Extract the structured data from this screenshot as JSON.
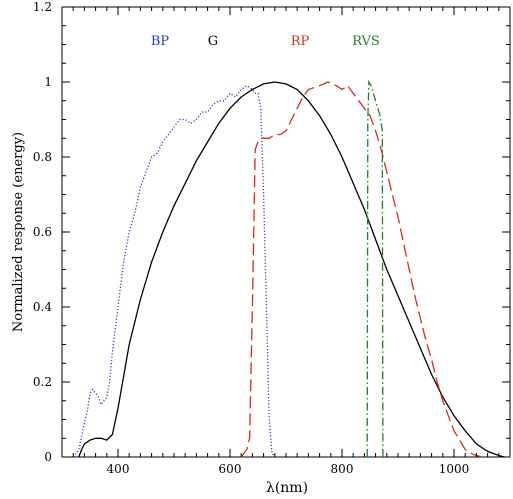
{
  "chart_data": {
    "type": "line",
    "title": "",
    "xlabel": "λ(nm)",
    "ylabel": "Normalized response (energy)",
    "xlim": [
      300,
      1100
    ],
    "ylim": [
      0,
      1.2
    ],
    "x_ticks": [
      400,
      600,
      800,
      1000
    ],
    "y_ticks": [
      0,
      0.2,
      0.4,
      0.6,
      0.8,
      1,
      1.2
    ],
    "grid": false,
    "legend": "in-plot labels along top",
    "series": [
      {
        "name": "BP",
        "color": "#1f3fbf",
        "dash": "dotted",
        "points": [
          [
            320,
            0
          ],
          [
            330,
            0.02
          ],
          [
            340,
            0.09
          ],
          [
            345,
            0.12
          ],
          [
            350,
            0.17
          ],
          [
            355,
            0.18
          ],
          [
            360,
            0.17
          ],
          [
            365,
            0.16
          ],
          [
            370,
            0.14
          ],
          [
            375,
            0.15
          ],
          [
            380,
            0.16
          ],
          [
            385,
            0.2
          ],
          [
            390,
            0.28
          ],
          [
            400,
            0.4
          ],
          [
            410,
            0.52
          ],
          [
            420,
            0.6
          ],
          [
            430,
            0.65
          ],
          [
            440,
            0.72
          ],
          [
            450,
            0.76
          ],
          [
            460,
            0.8
          ],
          [
            470,
            0.81
          ],
          [
            480,
            0.84
          ],
          [
            490,
            0.86
          ],
          [
            500,
            0.88
          ],
          [
            510,
            0.9
          ],
          [
            520,
            0.9
          ],
          [
            530,
            0.89
          ],
          [
            540,
            0.9
          ],
          [
            550,
            0.92
          ],
          [
            560,
            0.92
          ],
          [
            570,
            0.94
          ],
          [
            580,
            0.95
          ],
          [
            590,
            0.95
          ],
          [
            600,
            0.97
          ],
          [
            610,
            0.96
          ],
          [
            620,
            0.98
          ],
          [
            630,
            0.99
          ],
          [
            640,
            0.98
          ],
          [
            645,
            0.97
          ],
          [
            650,
            0.97
          ],
          [
            655,
            0.93
          ],
          [
            660,
            0.7
          ],
          [
            665,
            0.4
          ],
          [
            670,
            0.1
          ],
          [
            675,
            0.01
          ],
          [
            680,
            0
          ]
        ]
      },
      {
        "name": "G",
        "color": "#000000",
        "dash": "solid",
        "points": [
          [
            330,
            0
          ],
          [
            335,
            0.02
          ],
          [
            340,
            0.035
          ],
          [
            350,
            0.045
          ],
          [
            360,
            0.05
          ],
          [
            370,
            0.05
          ],
          [
            380,
            0.045
          ],
          [
            390,
            0.06
          ],
          [
            400,
            0.13
          ],
          [
            420,
            0.3
          ],
          [
            440,
            0.42
          ],
          [
            460,
            0.52
          ],
          [
            480,
            0.6
          ],
          [
            500,
            0.67
          ],
          [
            520,
            0.73
          ],
          [
            540,
            0.79
          ],
          [
            560,
            0.84
          ],
          [
            580,
            0.89
          ],
          [
            600,
            0.93
          ],
          [
            620,
            0.96
          ],
          [
            640,
            0.98
          ],
          [
            660,
            0.995
          ],
          [
            680,
            1.0
          ],
          [
            700,
            0.995
          ],
          [
            720,
            0.98
          ],
          [
            740,
            0.95
          ],
          [
            760,
            0.91
          ],
          [
            780,
            0.86
          ],
          [
            800,
            0.8
          ],
          [
            820,
            0.73
          ],
          [
            840,
            0.66
          ],
          [
            860,
            0.58
          ],
          [
            880,
            0.5
          ],
          [
            900,
            0.43
          ],
          [
            920,
            0.36
          ],
          [
            940,
            0.29
          ],
          [
            960,
            0.22
          ],
          [
            980,
            0.16
          ],
          [
            1000,
            0.11
          ],
          [
            1020,
            0.07
          ],
          [
            1040,
            0.035
          ],
          [
            1060,
            0.015
          ],
          [
            1080,
            0.004
          ],
          [
            1090,
            0
          ]
        ]
      },
      {
        "name": "RP",
        "color": "#d62a1f",
        "dash": "dashed",
        "points": [
          [
            620,
            0
          ],
          [
            630,
            0.02
          ],
          [
            635,
            0.05
          ],
          [
            640,
            0.4
          ],
          [
            645,
            0.82
          ],
          [
            650,
            0.84
          ],
          [
            655,
            0.85
          ],
          [
            660,
            0.85
          ],
          [
            670,
            0.85
          ],
          [
            680,
            0.86
          ],
          [
            690,
            0.86
          ],
          [
            700,
            0.87
          ],
          [
            710,
            0.9
          ],
          [
            720,
            0.93
          ],
          [
            730,
            0.96
          ],
          [
            740,
            0.98
          ],
          [
            760,
            0.99
          ],
          [
            775,
            1.0
          ],
          [
            790,
            0.99
          ],
          [
            800,
            0.98
          ],
          [
            810,
            0.99
          ],
          [
            820,
            0.97
          ],
          [
            830,
            0.95
          ],
          [
            840,
            0.93
          ],
          [
            850,
            0.91
          ],
          [
            860,
            0.87
          ],
          [
            870,
            0.82
          ],
          [
            880,
            0.76
          ],
          [
            890,
            0.7
          ],
          [
            900,
            0.64
          ],
          [
            910,
            0.57
          ],
          [
            920,
            0.5
          ],
          [
            930,
            0.43
          ],
          [
            940,
            0.37
          ],
          [
            950,
            0.31
          ],
          [
            960,
            0.26
          ],
          [
            970,
            0.2
          ],
          [
            980,
            0.15
          ],
          [
            990,
            0.11
          ],
          [
            1000,
            0.07
          ],
          [
            1010,
            0.045
          ],
          [
            1020,
            0.02
          ],
          [
            1030,
            0.01
          ],
          [
            1040,
            0.004
          ],
          [
            1050,
            0
          ]
        ]
      },
      {
        "name": "RVS",
        "color": "#1f7f2a",
        "dash": "dashdot",
        "points": [
          [
            845,
            0
          ],
          [
            846,
            0.9
          ],
          [
            848,
            1.0
          ],
          [
            852,
            0.99
          ],
          [
            856,
            0.97
          ],
          [
            860,
            0.95
          ],
          [
            864,
            0.93
          ],
          [
            868,
            0.91
          ],
          [
            872,
            0.87
          ],
          [
            873,
            0
          ]
        ]
      }
    ]
  }
}
